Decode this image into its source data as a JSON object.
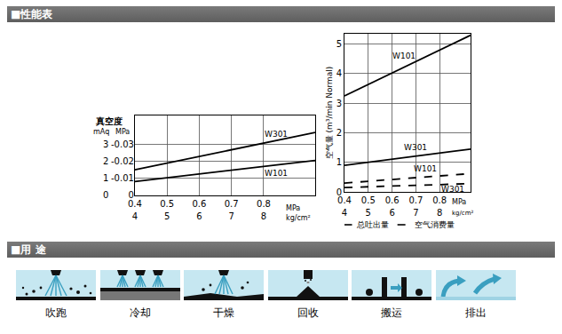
{
  "sections": [
    "■性能表",
    "■用 途"
  ],
  "chart_data": [
    {
      "type": "line",
      "y_label": "真空度",
      "y_unit": "mAq",
      "y2_unit": "MPa",
      "x_unit": "MPa",
      "x2_unit": "kg/cm²",
      "xlim": [
        0.4,
        0.96
      ],
      "xticks": [
        0.4,
        0.5,
        0.6,
        0.7,
        0.8
      ],
      "x2lim": [
        4,
        9.6
      ],
      "x2ticks": [
        4,
        5,
        6,
        7,
        8
      ],
      "ylim": [
        0,
        4.7
      ],
      "yticks": [
        0,
        1,
        2,
        3
      ],
      "y2lim": [
        0,
        -0.047
      ],
      "y2ticks": [
        0,
        -0.01,
        -0.02,
        -0.03
      ],
      "grid": true,
      "series": [
        {
          "name": "W301",
          "color": "#000000",
          "line_style": "solid",
          "x": [
            0.4,
            0.96
          ],
          "values": [
            1.5,
            3.7
          ],
          "label_x": 0.84,
          "label_y": 3.6
        },
        {
          "name": "W101",
          "color": "#000000",
          "line_style": "solid",
          "x": [
            0.4,
            0.96
          ],
          "values": [
            0.8,
            2.05
          ],
          "label_x": 0.84,
          "label_y": 1.3
        }
      ]
    },
    {
      "type": "line",
      "y_label": "空气量 (m³/min Normal)",
      "x_unit": "MPa",
      "x2_unit": "kg/cm²",
      "xlim": [
        0.4,
        0.93
      ],
      "xticks": [
        0.4,
        0.5,
        0.6,
        0.7,
        0.8
      ],
      "x2lim": [
        4,
        9.3
      ],
      "x2ticks": [
        4,
        5,
        6,
        7,
        8
      ],
      "ylim": [
        0,
        5.35
      ],
      "yticks": [
        0,
        1,
        2,
        3,
        4,
        5
      ],
      "grid": true,
      "legend": "bottom",
      "legend_items": [
        {
          "label": "总吐出量",
          "line_style": "solid"
        },
        {
          "label": "空气消费量",
          "line_style": "dashed"
        }
      ],
      "series": [
        {
          "name": "W101",
          "color": "#000000",
          "line_style": "solid",
          "x": [
            0.4,
            0.93
          ],
          "values": [
            3.25,
            5.3
          ],
          "label_x": 0.65,
          "label_y": 4.6
        },
        {
          "name": "W301",
          "color": "#000000",
          "line_style": "solid",
          "x": [
            0.4,
            0.93
          ],
          "values": [
            0.9,
            1.45
          ],
          "label_x": 0.7,
          "label_y": 1.5
        },
        {
          "name": "W101",
          "color": "#000000",
          "line_style": "dashed",
          "x": [
            0.4,
            0.93
          ],
          "values": [
            0.3,
            0.62
          ],
          "label_x": 0.74,
          "label_y": 0.78
        },
        {
          "name": "W301",
          "color": "#000000",
          "line_style": "dashed",
          "x": [
            0.4,
            0.93
          ],
          "values": [
            0.15,
            0.28
          ],
          "label_x": 0.855,
          "label_y": 0.1
        }
      ]
    }
  ],
  "uses": [
    "吹跑",
    "冷却",
    "干燥",
    "回收",
    "搬运",
    "排出"
  ]
}
